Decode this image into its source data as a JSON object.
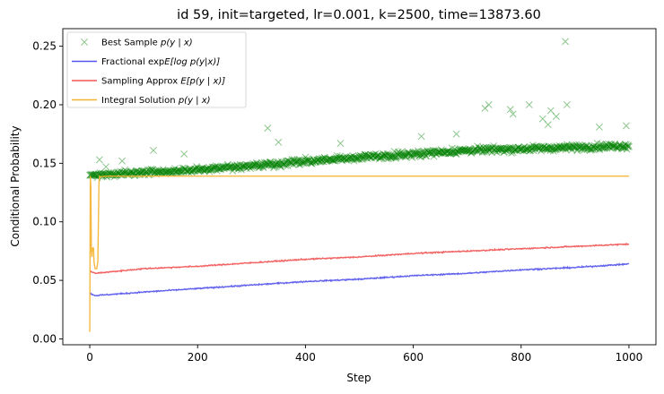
{
  "chart_data": {
    "type": "line",
    "title": "id 59, init=targeted, lr=0.001, k=2500, time=13873.60",
    "xlabel": "Step",
    "ylabel": "Conditional Probability",
    "xlim": [
      -50,
      1050
    ],
    "ylim": [
      -0.005,
      0.265
    ],
    "xticks": [
      0,
      200,
      400,
      600,
      800,
      1000
    ],
    "xtick_labels": [
      "0",
      "200",
      "400",
      "600",
      "800",
      "1000"
    ],
    "yticks": [
      0.0,
      0.05,
      0.1,
      0.15,
      0.2,
      0.25
    ],
    "ytick_labels": [
      "0.00",
      "0.05",
      "0.10",
      "0.15",
      "0.20",
      "0.25"
    ],
    "grid": false,
    "legend_position": "top-left",
    "series": [
      {
        "name": "Best Sample $p(y \\mid x)$",
        "legend_label": "Best Sample ",
        "legend_math": "p(y | x)",
        "kind": "scatter-x",
        "color": "#008000",
        "trend": {
          "x": [
            0,
            150,
            300,
            500,
            700,
            1000
          ],
          "y": [
            0.14,
            0.143,
            0.148,
            0.155,
            0.161,
            0.165
          ]
        },
        "outliers": [
          {
            "x": 18,
            "y": 0.153
          },
          {
            "x": 30,
            "y": 0.147
          },
          {
            "x": 60,
            "y": 0.152
          },
          {
            "x": 118,
            "y": 0.161
          },
          {
            "x": 175,
            "y": 0.158
          },
          {
            "x": 330,
            "y": 0.18
          },
          {
            "x": 350,
            "y": 0.168
          },
          {
            "x": 465,
            "y": 0.167
          },
          {
            "x": 615,
            "y": 0.173
          },
          {
            "x": 680,
            "y": 0.175
          },
          {
            "x": 733,
            "y": 0.197
          },
          {
            "x": 740,
            "y": 0.2
          },
          {
            "x": 780,
            "y": 0.196
          },
          {
            "x": 785,
            "y": 0.192
          },
          {
            "x": 815,
            "y": 0.2
          },
          {
            "x": 840,
            "y": 0.188
          },
          {
            "x": 850,
            "y": 0.183
          },
          {
            "x": 855,
            "y": 0.195
          },
          {
            "x": 865,
            "y": 0.19
          },
          {
            "x": 882,
            "y": 0.254
          },
          {
            "x": 885,
            "y": 0.2
          },
          {
            "x": 945,
            "y": 0.181
          },
          {
            "x": 995,
            "y": 0.182
          }
        ]
      },
      {
        "name": "Fractional $\\exp \\mathbb{E}[\\log p(y|x)]$",
        "legend_label": "Fractional exp",
        "legend_math": "E[log p(y|x)]",
        "kind": "line",
        "color": "#5555ee",
        "x": [
          0,
          5,
          10,
          100,
          200,
          300,
          400,
          500,
          600,
          700,
          800,
          900,
          1000
        ],
        "y": [
          0.039,
          0.038,
          0.037,
          0.04,
          0.043,
          0.046,
          0.049,
          0.051,
          0.054,
          0.056,
          0.059,
          0.061,
          0.064
        ]
      },
      {
        "name": "Sampling Approx $E[p(y \\mid x)]$",
        "legend_label": "Sampling Approx ",
        "legend_math": "E[p(y | x)]",
        "kind": "line",
        "color": "#f25555",
        "x": [
          0,
          5,
          10,
          100,
          200,
          300,
          400,
          500,
          600,
          700,
          800,
          900,
          1000
        ],
        "y": [
          0.058,
          0.057,
          0.056,
          0.06,
          0.062,
          0.065,
          0.068,
          0.07,
          0.073,
          0.075,
          0.077,
          0.079,
          0.081
        ]
      },
      {
        "name": "Integral Solution $p(y \\mid x)$",
        "legend_label": "Integral Solution ",
        "legend_math": "p(y | x)",
        "kind": "line",
        "color": "#f5b22e",
        "x": [
          0,
          1,
          2,
          3,
          4,
          5,
          6,
          7,
          8,
          10,
          13,
          15,
          17,
          18,
          20,
          30,
          100,
          300,
          500,
          700,
          1000
        ],
        "y": [
          0.006,
          0.139,
          0.13,
          0.075,
          0.07,
          0.078,
          0.077,
          0.078,
          0.065,
          0.06,
          0.06,
          0.066,
          0.132,
          0.139,
          0.1385,
          0.139,
          0.139,
          0.139,
          0.139,
          0.139,
          0.139
        ]
      }
    ]
  }
}
